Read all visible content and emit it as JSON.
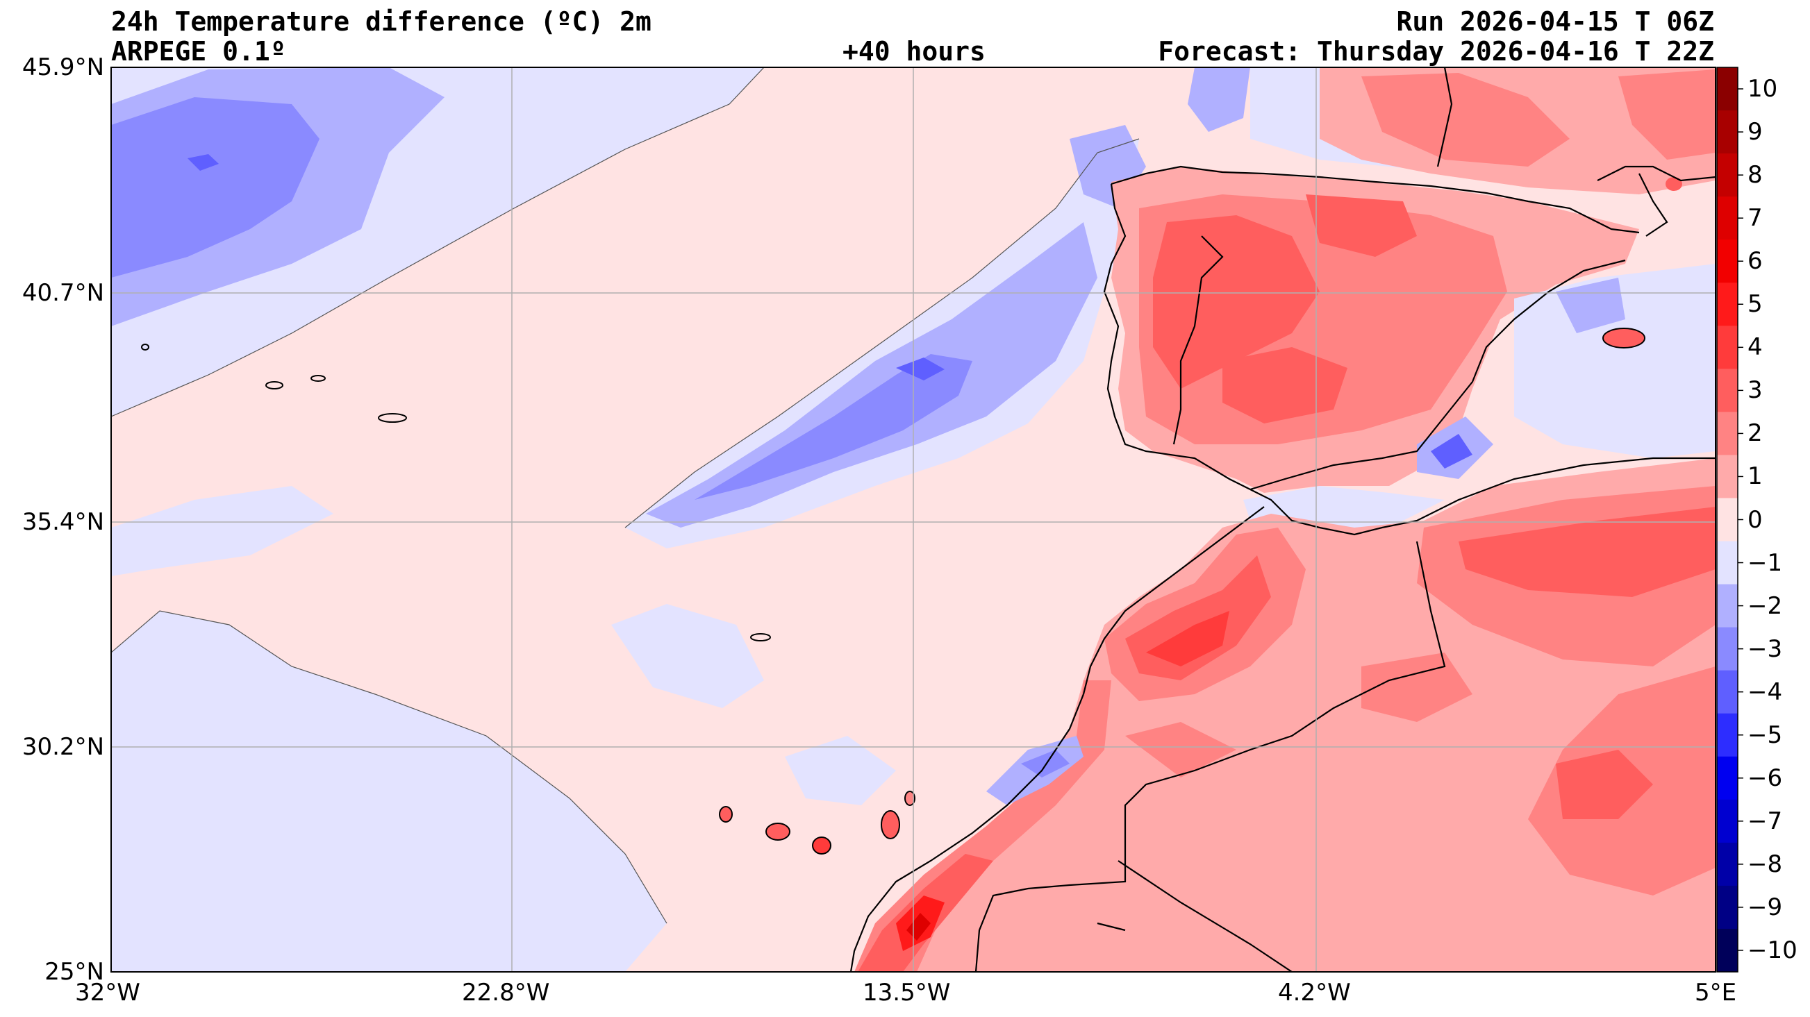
{
  "header": {
    "title_left": "24h Temperature difference (ºC) 2m",
    "model": "ARPEGE 0.1º",
    "lead": "+40 hours",
    "run": "Run 2026-04-15 T 06Z",
    "forecast": "Forecast: Thursday 2026-04-16 T 22Z"
  },
  "map": {
    "lat_ticks": [
      "45.9°N",
      "40.7°N",
      "35.4°N",
      "30.2°N",
      "25°N"
    ],
    "lon_ticks": [
      "32°W",
      "22.8°W",
      "13.5°W",
      "4.2°W",
      "5°E"
    ],
    "lat_range": [
      25.0,
      45.9
    ],
    "lon_range": [
      -32.0,
      5.0
    ]
  },
  "colorbar": {
    "labels": [
      "10",
      "9",
      "8",
      "7",
      "6",
      "5",
      "4",
      "3",
      "2",
      "1",
      "0",
      "−1",
      "−2",
      "−3",
      "−4",
      "−5",
      "−6",
      "−7",
      "−8",
      "−9",
      "−10"
    ],
    "colors_top_to_bottom": [
      "#8b0000",
      "#a80000",
      "#c40000",
      "#de0000",
      "#f20000",
      "#ff1a1a",
      "#ff3b3b",
      "#ff5e5e",
      "#ff8383",
      "#ffaaaa",
      "#ffe3e3",
      "#e3e3ff",
      "#b0b0ff",
      "#8a8aff",
      "#5f5fff",
      "#2d2dff",
      "#0000f0",
      "#0000d0",
      "#0000a8",
      "#000085",
      "#00005a"
    ]
  }
}
